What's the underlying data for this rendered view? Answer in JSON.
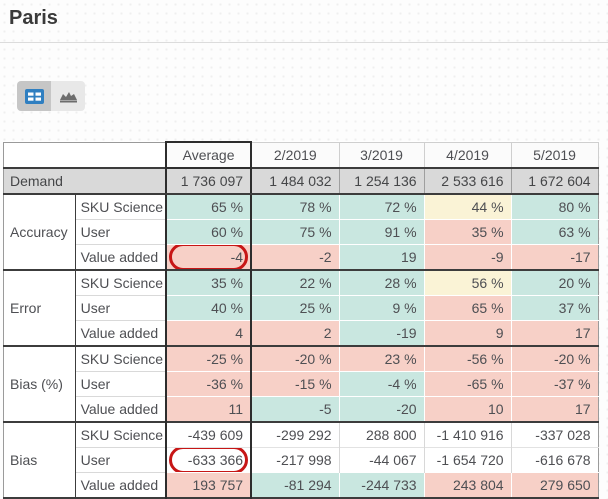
{
  "page": {
    "title": "Paris"
  },
  "toolbar": {
    "view_toggle": [
      {
        "id": "table-view",
        "icon": "table-grid-icon",
        "selected": true
      },
      {
        "id": "chart-view",
        "icon": "bar-chart-icon",
        "selected": false
      }
    ]
  },
  "colors": {
    "good_teal": "#c9e7e0",
    "bad_pink": "#f7d0c7",
    "warn_yellow": "#faf3d6",
    "demand_gray": "#d9d9d9",
    "annotation_red": "#c71616",
    "icon_blue": "#2f7fc1"
  },
  "table": {
    "columns": [
      "Average",
      "2/2019",
      "3/2019",
      "4/2019",
      "5/2019"
    ],
    "demand": {
      "label": "Demand",
      "values": [
        "1 736 097",
        "1 484 032",
        "1 254 136",
        "2 533 616",
        "1 672 604"
      ]
    },
    "sections": [
      {
        "label": "Accuracy",
        "rows": [
          {
            "label": "SKU Science",
            "cells": [
              {
                "v": "65 %",
                "c": "teal"
              },
              {
                "v": "78 %",
                "c": "teal"
              },
              {
                "v": "72 %",
                "c": "teal"
              },
              {
                "v": "44 %",
                "c": "yellow"
              },
              {
                "v": "80 %",
                "c": "teal"
              }
            ]
          },
          {
            "label": "User",
            "cells": [
              {
                "v": "60 %",
                "c": "teal"
              },
              {
                "v": "75 %",
                "c": "teal"
              },
              {
                "v": "91 %",
                "c": "teal"
              },
              {
                "v": "35 %",
                "c": "pink"
              },
              {
                "v": "63 %",
                "c": "teal"
              }
            ]
          },
          {
            "label": "Value added",
            "cells": [
              {
                "v": "-4",
                "c": "pink",
                "ring": true
              },
              {
                "v": "-2",
                "c": "pink"
              },
              {
                "v": "19",
                "c": "teal"
              },
              {
                "v": "-9",
                "c": "pink"
              },
              {
                "v": "-17",
                "c": "pink"
              }
            ]
          }
        ]
      },
      {
        "label": "Error",
        "rows": [
          {
            "label": "SKU Science",
            "cells": [
              {
                "v": "35 %",
                "c": "teal"
              },
              {
                "v": "22 %",
                "c": "teal"
              },
              {
                "v": "28 %",
                "c": "teal"
              },
              {
                "v": "56 %",
                "c": "yellow"
              },
              {
                "v": "20 %",
                "c": "teal"
              }
            ]
          },
          {
            "label": "User",
            "cells": [
              {
                "v": "40 %",
                "c": "teal"
              },
              {
                "v": "25 %",
                "c": "teal"
              },
              {
                "v": "9 %",
                "c": "teal"
              },
              {
                "v": "65 %",
                "c": "pink"
              },
              {
                "v": "37 %",
                "c": "teal"
              }
            ]
          },
          {
            "label": "Value added",
            "cells": [
              {
                "v": "4",
                "c": "pink"
              },
              {
                "v": "2",
                "c": "pink"
              },
              {
                "v": "-19",
                "c": "teal"
              },
              {
                "v": "9",
                "c": "pink"
              },
              {
                "v": "17",
                "c": "pink"
              }
            ]
          }
        ]
      },
      {
        "label": "Bias (%)",
        "rows": [
          {
            "label": "SKU Science",
            "cells": [
              {
                "v": "-25 %",
                "c": "pink"
              },
              {
                "v": "-20 %",
                "c": "pink"
              },
              {
                "v": "23 %",
                "c": "pink"
              },
              {
                "v": "-56 %",
                "c": "pink"
              },
              {
                "v": "-20 %",
                "c": "pink"
              }
            ]
          },
          {
            "label": "User",
            "cells": [
              {
                "v": "-36 %",
                "c": "pink"
              },
              {
                "v": "-15 %",
                "c": "pink"
              },
              {
                "v": "-4 %",
                "c": "teal"
              },
              {
                "v": "-65 %",
                "c": "pink"
              },
              {
                "v": "-37 %",
                "c": "pink"
              }
            ]
          },
          {
            "label": "Value added",
            "cells": [
              {
                "v": "11",
                "c": "pink"
              },
              {
                "v": "-5",
                "c": "teal"
              },
              {
                "v": "-20",
                "c": "teal"
              },
              {
                "v": "10",
                "c": "pink"
              },
              {
                "v": "17",
                "c": "pink"
              }
            ]
          }
        ]
      },
      {
        "label": "Bias",
        "rows": [
          {
            "label": "SKU Science",
            "cells": [
              {
                "v": "-439 609",
                "c": "white"
              },
              {
                "v": "-299 292",
                "c": "white"
              },
              {
                "v": "288 800",
                "c": "white"
              },
              {
                "v": "-1 410 916",
                "c": "white"
              },
              {
                "v": "-337 028",
                "c": "white"
              }
            ]
          },
          {
            "label": "User",
            "cells": [
              {
                "v": "-633 366",
                "c": "white",
                "ring": true
              },
              {
                "v": "-217 998",
                "c": "white"
              },
              {
                "v": "-44 067",
                "c": "white"
              },
              {
                "v": "-1 654 720",
                "c": "white"
              },
              {
                "v": "-616 678",
                "c": "white"
              }
            ]
          },
          {
            "label": "Value added",
            "cells": [
              {
                "v": "193 757",
                "c": "pink"
              },
              {
                "v": "-81 294",
                "c": "teal"
              },
              {
                "v": "-244 733",
                "c": "teal"
              },
              {
                "v": "243 804",
                "c": "pink"
              },
              {
                "v": "279 650",
                "c": "pink"
              }
            ]
          }
        ]
      }
    ]
  },
  "annotations": [
    {
      "shape": "ellipse",
      "color": "#c71616",
      "target": "Accuracy / Value added / Average (-4)"
    },
    {
      "shape": "ellipse",
      "color": "#c71616",
      "target": "Bias / User / Average (-633 366)"
    }
  ]
}
